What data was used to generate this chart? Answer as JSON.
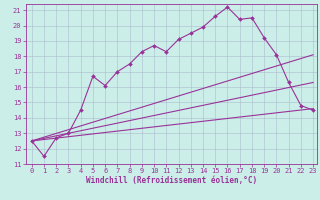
{
  "xlabel": "Windchill (Refroidissement éolien,°C)",
  "bg_color": "#cceee8",
  "grid_color": "#aabbcc",
  "line_color": "#993399",
  "xlim_min": -0.5,
  "xlim_max": 23.3,
  "ylim_min": 11,
  "ylim_max": 21.4,
  "yticks": [
    11,
    12,
    13,
    14,
    15,
    16,
    17,
    18,
    19,
    20,
    21
  ],
  "xticks": [
    0,
    1,
    2,
    3,
    4,
    5,
    6,
    7,
    8,
    9,
    10,
    11,
    12,
    13,
    14,
    15,
    16,
    17,
    18,
    19,
    20,
    21,
    22,
    23
  ],
  "series": [
    {
      "x": [
        0,
        1,
        2,
        3,
        4,
        5,
        6,
        7,
        8,
        9,
        10,
        11,
        12,
        13,
        14,
        15,
        16,
        17,
        18,
        19,
        20,
        21,
        22,
        23
      ],
      "y": [
        12.5,
        11.5,
        12.7,
        13.0,
        14.5,
        16.7,
        16.1,
        17.0,
        17.5,
        18.3,
        18.7,
        18.3,
        19.1,
        19.5,
        19.9,
        20.6,
        21.2,
        20.4,
        20.5,
        19.2,
        18.1,
        16.3,
        14.8,
        14.5
      ],
      "every_marker": true
    },
    {
      "x": [
        0,
        23
      ],
      "y": [
        12.5,
        18.1
      ],
      "every_marker": false
    },
    {
      "x": [
        0,
        23
      ],
      "y": [
        12.5,
        16.3
      ],
      "every_marker": false
    },
    {
      "x": [
        0,
        23
      ],
      "y": [
        12.5,
        14.6
      ],
      "every_marker": false
    }
  ],
  "marker": "D",
  "marker_size": 2.0,
  "linewidth": 0.8,
  "fontsize_label": 5.5,
  "fontsize_tick": 5.0,
  "tick_font": "monospace"
}
